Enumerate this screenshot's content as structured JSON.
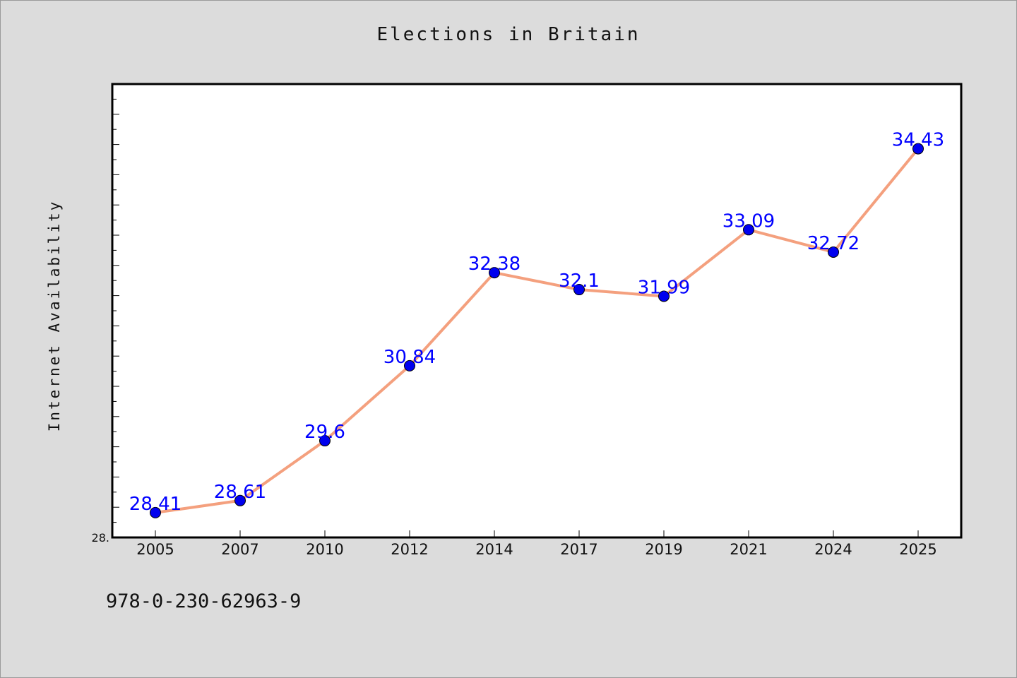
{
  "chart_data": {
    "type": "line",
    "title": "Elections in Britain",
    "xlabel": "",
    "ylabel": "Internet Availability",
    "categories": [
      "2005",
      "2007",
      "2010",
      "2012",
      "2014",
      "2017",
      "2019",
      "2021",
      "2024",
      "2025"
    ],
    "series": [
      {
        "values": [
          28.41,
          28.61,
          29.6,
          30.84,
          32.38,
          32.1,
          31.99,
          33.09,
          32.72,
          34.43
        ],
        "data_labels": [
          "28.41",
          "28.61",
          "29.6",
          "30.84",
          "32.38",
          "32.1",
          "31.99",
          "33.09",
          "32.72",
          "34.43"
        ]
      }
    ],
    "y_tick_labels": [
      "28."
    ],
    "ylim": [
      28.0,
      35.5
    ],
    "grid": false,
    "legend": "none",
    "colors": {
      "line": "#f4a07e",
      "marker": "#0000ee",
      "data_label": "#0000ff",
      "plot_background": "#ffffff",
      "figure_background": "#dcdcdc"
    }
  },
  "footnote": "978-0-230-62963-9"
}
